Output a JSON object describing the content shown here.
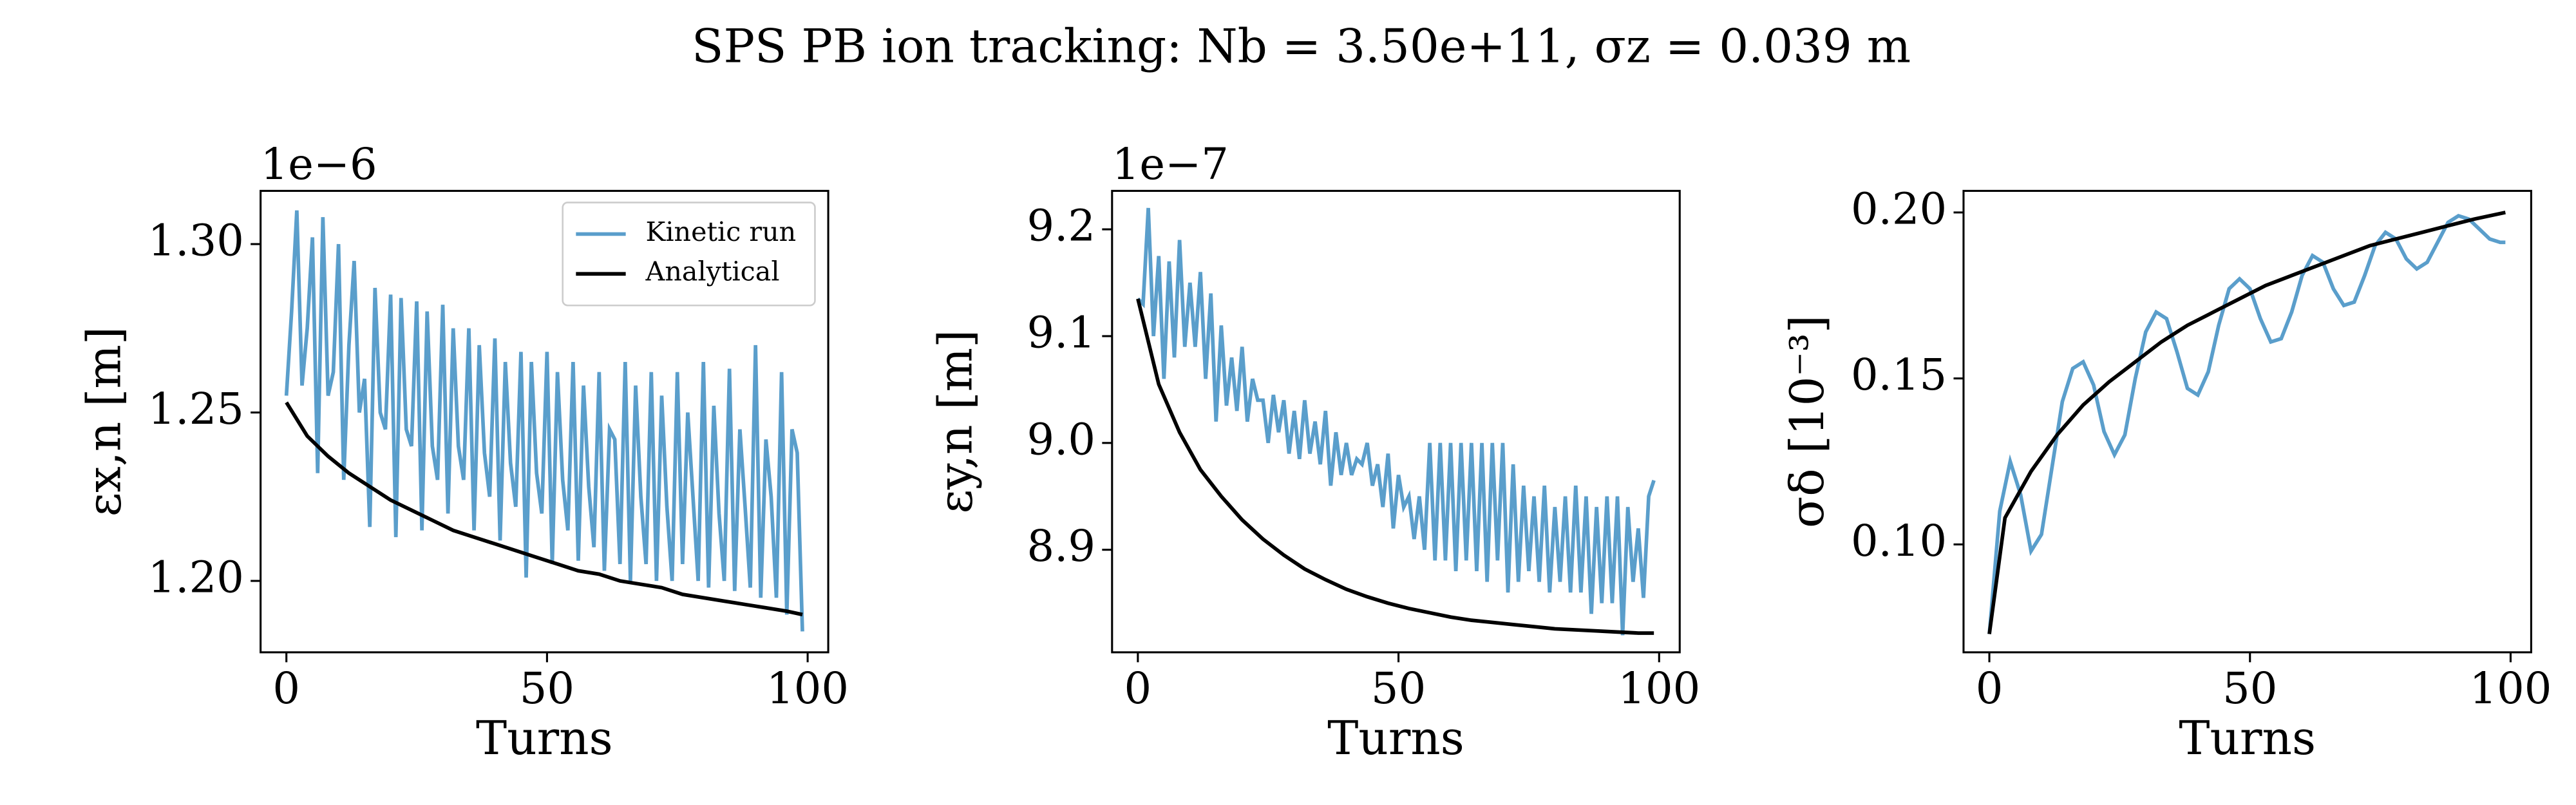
{
  "title": "SPS PB ion tracking: Nb = 3.50e+11, σz = 0.039 m",
  "chart_data": [
    {
      "type": "line",
      "ylabel": "εx,n [m]",
      "xlabel": "Turns",
      "offset_text": "1e−6",
      "xlim": [
        -4.95,
        103.95
      ],
      "xticks": [
        0,
        50,
        100
      ],
      "ylim": [
        1.1788,
        1.3158
      ],
      "yticks": [
        {
          "value": 1.2,
          "label": "1.20"
        },
        {
          "value": 1.25,
          "label": "1.25"
        },
        {
          "value": 1.3,
          "label": "1.30"
        }
      ],
      "legend": "upper right",
      "series": [
        {
          "name": "Kinetic run",
          "color": "#5a9ecb",
          "x": [
            0,
            1,
            2,
            3,
            4,
            5,
            6,
            7,
            8,
            9,
            10,
            11,
            12,
            13,
            14,
            15,
            16,
            17,
            18,
            19,
            20,
            21,
            22,
            23,
            24,
            25,
            26,
            27,
            28,
            29,
            30,
            31,
            32,
            33,
            34,
            35,
            36,
            37,
            38,
            39,
            40,
            41,
            42,
            43,
            44,
            45,
            46,
            47,
            48,
            49,
            50,
            51,
            52,
            53,
            54,
            55,
            56,
            57,
            58,
            59,
            60,
            61,
            62,
            63,
            64,
            65,
            66,
            67,
            68,
            69,
            70,
            71,
            72,
            73,
            74,
            75,
            76,
            77,
            78,
            79,
            80,
            81,
            82,
            83,
            84,
            85,
            86,
            87,
            88,
            89,
            90,
            91,
            92,
            93,
            94,
            95,
            96,
            97,
            98,
            99
          ],
          "values": [
            1.255,
            1.28,
            1.31,
            1.258,
            1.275,
            1.302,
            1.232,
            1.308,
            1.255,
            1.262,
            1.3,
            1.23,
            1.27,
            1.295,
            1.25,
            1.26,
            1.216,
            1.287,
            1.25,
            1.245,
            1.285,
            1.213,
            1.284,
            1.245,
            1.24,
            1.283,
            1.215,
            1.28,
            1.24,
            1.23,
            1.282,
            1.22,
            1.275,
            1.24,
            1.23,
            1.275,
            1.215,
            1.27,
            1.238,
            1.225,
            1.272,
            1.212,
            1.265,
            1.235,
            1.222,
            1.268,
            1.201,
            1.265,
            1.232,
            1.22,
            1.268,
            1.205,
            1.262,
            1.23,
            1.215,
            1.265,
            1.206,
            1.258,
            1.228,
            1.21,
            1.262,
            1.203,
            1.245,
            1.242,
            1.205,
            1.265,
            1.2,
            1.258,
            1.225,
            1.205,
            1.262,
            1.2,
            1.255,
            1.222,
            1.2,
            1.262,
            1.205,
            1.25,
            1.225,
            1.2,
            1.265,
            1.198,
            1.252,
            1.22,
            1.2,
            1.263,
            1.197,
            1.245,
            1.222,
            1.198,
            1.27,
            1.195,
            1.242,
            1.225,
            1.195,
            1.262,
            1.19,
            1.245,
            1.238,
            1.185
          ]
        },
        {
          "name": "Analytical",
          "color": "#000000",
          "x": [
            0,
            4,
            8,
            12,
            16,
            20,
            24,
            28,
            32,
            36,
            40,
            44,
            48,
            52,
            56,
            60,
            64,
            68,
            72,
            76,
            80,
            84,
            88,
            92,
            96,
            99
          ],
          "values": [
            1.253,
            1.243,
            1.237,
            1.232,
            1.228,
            1.224,
            1.221,
            1.218,
            1.215,
            1.213,
            1.211,
            1.209,
            1.207,
            1.205,
            1.203,
            1.202,
            1.2,
            1.199,
            1.198,
            1.196,
            1.195,
            1.194,
            1.193,
            1.192,
            1.191,
            1.19
          ]
        }
      ]
    },
    {
      "type": "line",
      "ylabel": "εy,n [m]",
      "xlabel": "Turns",
      "offset_text": "1e−7",
      "xlim": [
        -4.95,
        103.95
      ],
      "xticks": [
        0,
        50,
        100
      ],
      "ylim": [
        8.804,
        9.236
      ],
      "yticks": [
        8.9,
        {
          "value": 9,
          "label": "9.0"
        },
        9.1,
        9.2
      ],
      "series": [
        {
          "color": "#5a9ecb",
          "x": [
            0,
            1,
            2,
            3,
            4,
            5,
            6,
            7,
            8,
            9,
            10,
            11,
            12,
            13,
            14,
            15,
            16,
            17,
            18,
            19,
            20,
            21,
            22,
            23,
            24,
            25,
            26,
            27,
            28,
            29,
            30,
            31,
            32,
            33,
            34,
            35,
            36,
            37,
            38,
            39,
            40,
            41,
            42,
            43,
            44,
            45,
            46,
            47,
            48,
            49,
            50,
            51,
            52,
            53,
            54,
            55,
            56,
            57,
            58,
            59,
            60,
            61,
            62,
            63,
            64,
            65,
            66,
            67,
            68,
            69,
            70,
            71,
            72,
            73,
            74,
            75,
            76,
            77,
            78,
            79,
            80,
            81,
            82,
            83,
            84,
            85,
            86,
            87,
            88,
            89,
            90,
            91,
            92,
            93,
            94,
            95,
            96,
            97,
            98,
            99
          ],
          "values": [
            9.135,
            9.13,
            9.22,
            9.1,
            9.175,
            9.06,
            9.17,
            9.08,
            9.19,
            9.09,
            9.15,
            9.09,
            9.16,
            9.06,
            9.14,
            9.02,
            9.11,
            9.035,
            9.08,
            9.03,
            9.09,
            9.02,
            9.06,
            9.04,
            9.04,
            9.0,
            9.045,
            9.01,
            9.04,
            8.99,
            9.03,
            8.985,
            9.04,
            8.99,
            9.02,
            8.98,
            9.03,
            8.96,
            9.01,
            8.97,
            9.0,
            8.97,
            8.985,
            8.98,
            9.0,
            8.96,
            8.98,
            8.94,
            8.99,
            8.92,
            8.97,
            8.94,
            8.95,
            8.91,
            8.95,
            8.9,
            9.0,
            8.89,
            9.0,
            8.89,
            9.0,
            8.88,
            9.0,
            8.89,
            9.0,
            8.88,
            9.0,
            8.87,
            9.0,
            8.89,
            9.0,
            8.86,
            8.98,
            8.87,
            8.96,
            8.88,
            8.95,
            8.87,
            8.96,
            8.86,
            8.94,
            8.87,
            8.95,
            8.86,
            8.96,
            8.86,
            8.95,
            8.84,
            8.94,
            8.85,
            8.95,
            8.85,
            8.95,
            8.82,
            8.94,
            8.87,
            8.92,
            8.855,
            8.95,
            8.965
          ]
        },
        {
          "color": "#000000",
          "x": [
            0,
            4,
            8,
            12,
            16,
            20,
            24,
            28,
            32,
            36,
            40,
            44,
            48,
            52,
            56,
            60,
            64,
            68,
            72,
            76,
            80,
            84,
            88,
            92,
            96,
            99
          ],
          "values": [
            9.135,
            9.055,
            9.01,
            8.975,
            8.95,
            8.928,
            8.91,
            8.895,
            8.882,
            8.872,
            8.863,
            8.856,
            8.85,
            8.845,
            8.841,
            8.837,
            8.834,
            8.832,
            8.83,
            8.828,
            8.826,
            8.825,
            8.824,
            8.823,
            8.822,
            8.822
          ]
        }
      ]
    },
    {
      "type": "line",
      "ylabel": "σδ [10⁻³]",
      "xlabel": "Turns",
      "xlim": [
        -4.95,
        103.95
      ],
      "xticks": [
        0,
        50,
        100
      ],
      "ylim": [
        0.0675,
        0.2065
      ],
      "yticks": [
        {
          "value": 0.1,
          "label": "0.10"
        },
        0.15,
        {
          "value": 0.2,
          "label": "0.20"
        }
      ],
      "series": [
        {
          "color": "#5a9ecb",
          "x": [
            0,
            2,
            4,
            6,
            8,
            10,
            12,
            14,
            16,
            18,
            20,
            22,
            24,
            26,
            28,
            30,
            32,
            34,
            36,
            38,
            40,
            42,
            44,
            46,
            48,
            50,
            52,
            54,
            56,
            58,
            60,
            62,
            64,
            66,
            68,
            70,
            72,
            74,
            76,
            78,
            80,
            82,
            84,
            86,
            88,
            90,
            92,
            94,
            96,
            98,
            99
          ],
          "values": [
            0.073,
            0.11,
            0.125,
            0.115,
            0.098,
            0.103,
            0.123,
            0.143,
            0.153,
            0.155,
            0.148,
            0.134,
            0.127,
            0.133,
            0.15,
            0.164,
            0.17,
            0.168,
            0.158,
            0.147,
            0.145,
            0.152,
            0.166,
            0.177,
            0.18,
            0.177,
            0.168,
            0.161,
            0.162,
            0.17,
            0.181,
            0.187,
            0.185,
            0.177,
            0.172,
            0.173,
            0.181,
            0.19,
            0.194,
            0.192,
            0.186,
            0.183,
            0.185,
            0.191,
            0.197,
            0.199,
            0.198,
            0.195,
            0.192,
            0.191,
            0.191
          ]
        },
        {
          "color": "#000000",
          "x": [
            0,
            3,
            8,
            13,
            18,
            23,
            28,
            33,
            38,
            43,
            48,
            53,
            58,
            63,
            68,
            73,
            78,
            83,
            88,
            93,
            99
          ],
          "values": [
            0.073,
            0.108,
            0.122,
            0.133,
            0.142,
            0.149,
            0.155,
            0.161,
            0.166,
            0.17,
            0.174,
            0.178,
            0.181,
            0.184,
            0.187,
            0.19,
            0.192,
            0.194,
            0.196,
            0.198,
            0.2
          ]
        }
      ]
    }
  ]
}
